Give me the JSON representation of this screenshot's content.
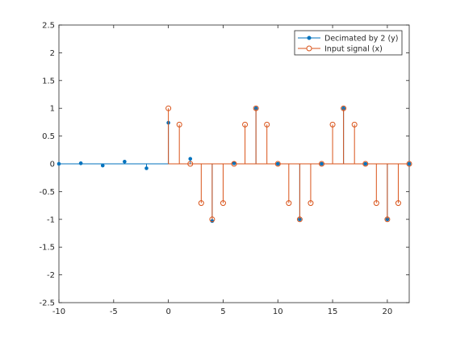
{
  "chart_data": {
    "type": "stem",
    "title": "",
    "xlabel": "",
    "ylabel": "",
    "xlim": [
      -10,
      22
    ],
    "ylim": [
      -2.5,
      2.5
    ],
    "x_ticks": [
      -10,
      -5,
      0,
      5,
      10,
      15,
      20
    ],
    "y_ticks": [
      -2.5,
      -2,
      -1.5,
      -1,
      -0.5,
      0,
      0.5,
      1,
      1.5,
      2,
      2.5
    ],
    "x_tick_labels": [
      "-10",
      "-5",
      "0",
      "5",
      "10",
      "15",
      "20"
    ],
    "y_tick_labels": [
      "-2.5",
      "-2",
      "-1.5",
      "-1",
      "-0.5",
      "0",
      "0.5",
      "1",
      "1.5",
      "2",
      "2.5"
    ],
    "grid": false,
    "legend_position": "top-right",
    "series": [
      {
        "name": "Decimated by 2 (y)",
        "color": "#0072BD",
        "marker": "dot",
        "x": [
          -10,
          -8,
          -6,
          -4,
          -2,
          0,
          2,
          4,
          6,
          8,
          10,
          12,
          14,
          16,
          18,
          20,
          22
        ],
        "y": [
          0,
          0.01,
          -0.03,
          0.04,
          -0.08,
          0.74,
          0.09,
          -1.03,
          0.01,
          1.0,
          0,
          -1.0,
          0,
          1.0,
          0,
          -1.0,
          0
        ]
      },
      {
        "name": "Input signal (x)",
        "color": "#D95319",
        "marker": "circle",
        "x": [
          0,
          1,
          2,
          3,
          4,
          5,
          6,
          7,
          8,
          9,
          10,
          11,
          12,
          13,
          14,
          15,
          16,
          17,
          18,
          19,
          20,
          21,
          22
        ],
        "y": [
          1,
          0.707,
          0,
          -0.707,
          -1,
          -0.707,
          0,
          0.707,
          1,
          0.707,
          0,
          -0.707,
          -1,
          -0.707,
          0,
          0.707,
          1,
          0.707,
          0,
          -0.707,
          -1,
          -0.707,
          0
        ]
      }
    ]
  }
}
